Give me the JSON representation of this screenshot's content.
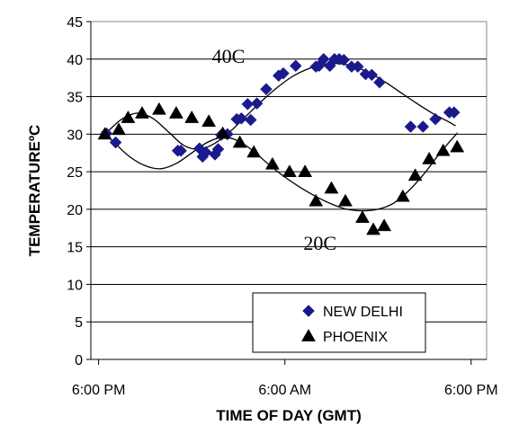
{
  "chart_data": {
    "type": "scatter",
    "title": "",
    "xlabel": "TIME OF DAY (GMT)",
    "ylabel": "TEMPERATUREºC",
    "xlim": [
      -0.5,
      25
    ],
    "ylim": [
      0,
      45
    ],
    "yticks": [
      0,
      5,
      10,
      15,
      20,
      25,
      30,
      35,
      40,
      45
    ],
    "xticks": [
      {
        "x": 0,
        "label": "6:00 PM"
      },
      {
        "x": 12,
        "label": "6:00 AM"
      },
      {
        "x": 24,
        "label": "6:00 PM"
      }
    ],
    "grid": "horizontal",
    "legend_position": "bottom-right",
    "annotations": [
      {
        "text": "40C",
        "x": 7.3,
        "y": 39.5
      },
      {
        "text": "20C",
        "x": 13.2,
        "y": 14.6
      }
    ],
    "series": [
      {
        "name": "NEW DELHI",
        "marker": "diamond",
        "color": "#1a1a8c",
        "points": [
          [
            0.5,
            30.1
          ],
          [
            1.1,
            28.9
          ],
          [
            5.1,
            27.8
          ],
          [
            5.3,
            27.8
          ],
          [
            6.5,
            28.1
          ],
          [
            6.7,
            27.0
          ],
          [
            6.9,
            27.6
          ],
          [
            7.5,
            27.3
          ],
          [
            7.7,
            28.0
          ],
          [
            7.9,
            29.9
          ],
          [
            8.3,
            30.0
          ],
          [
            8.9,
            32.0
          ],
          [
            9.2,
            32.1
          ],
          [
            9.6,
            34.0
          ],
          [
            9.8,
            31.9
          ],
          [
            10.2,
            34.1
          ],
          [
            10.8,
            36.0
          ],
          [
            11.6,
            37.8
          ],
          [
            11.9,
            38.1
          ],
          [
            12.7,
            39.1
          ],
          [
            14.0,
            39.0
          ],
          [
            14.2,
            39.1
          ],
          [
            14.5,
            40.0
          ],
          [
            14.9,
            39.1
          ],
          [
            15.2,
            40.0
          ],
          [
            15.5,
            40.0
          ],
          [
            15.8,
            39.9
          ],
          [
            16.3,
            39.0
          ],
          [
            16.7,
            39.0
          ],
          [
            17.2,
            38.0
          ],
          [
            17.6,
            37.9
          ],
          [
            18.1,
            36.9
          ],
          [
            20.1,
            31.0
          ],
          [
            20.9,
            31.0
          ],
          [
            21.7,
            32.0
          ],
          [
            22.6,
            32.9
          ],
          [
            22.9,
            32.9
          ]
        ],
        "fit_curve": [
          [
            0.5,
            30.2
          ],
          [
            1.5,
            32.0
          ],
          [
            2.5,
            32.8
          ],
          [
            3.5,
            32.1
          ],
          [
            4.5,
            30.3
          ],
          [
            5.5,
            28.5
          ],
          [
            6.5,
            28.0
          ],
          [
            7.5,
            28.8
          ],
          [
            8.5,
            30.4
          ],
          [
            9.5,
            32.4
          ],
          [
            10.5,
            34.4
          ],
          [
            11.5,
            36.2
          ],
          [
            12.5,
            37.7
          ],
          [
            13.5,
            38.7
          ],
          [
            14.5,
            39.3
          ],
          [
            15.5,
            39.4
          ],
          [
            16.5,
            39.0
          ],
          [
            17.5,
            38.1
          ],
          [
            18.5,
            36.9
          ],
          [
            19.5,
            35.5
          ],
          [
            20.5,
            34.1
          ],
          [
            21.5,
            32.8
          ],
          [
            22.5,
            31.7
          ],
          [
            23.0,
            31.1
          ]
        ]
      },
      {
        "name": "PHOENIX",
        "marker": "triangle",
        "color": "#000000",
        "points": [
          [
            0.4,
            30.0
          ],
          [
            1.3,
            30.6
          ],
          [
            1.9,
            32.2
          ],
          [
            2.8,
            32.8
          ],
          [
            3.9,
            33.3
          ],
          [
            5.0,
            32.8
          ],
          [
            6.0,
            32.2
          ],
          [
            7.1,
            31.7
          ],
          [
            8.0,
            30.1
          ],
          [
            9.1,
            28.9
          ],
          [
            10.0,
            27.6
          ],
          [
            11.2,
            26.0
          ],
          [
            12.3,
            25.0
          ],
          [
            13.3,
            25.0
          ],
          [
            14.0,
            21.1
          ],
          [
            15.0,
            22.8
          ],
          [
            15.9,
            21.1
          ],
          [
            17.0,
            18.9
          ],
          [
            17.7,
            17.3
          ],
          [
            18.4,
            17.8
          ],
          [
            19.6,
            21.7
          ],
          [
            20.4,
            24.5
          ],
          [
            21.3,
            26.7
          ],
          [
            22.2,
            27.8
          ],
          [
            23.1,
            28.3
          ]
        ],
        "fit_curve": [
          [
            0.2,
            30.4
          ],
          [
            1.0,
            28.9
          ],
          [
            2.0,
            27.0
          ],
          [
            3.0,
            25.8
          ],
          [
            4.0,
            25.4
          ],
          [
            5.0,
            26.1
          ],
          [
            6.0,
            27.5
          ],
          [
            7.0,
            28.9
          ],
          [
            8.0,
            29.6
          ],
          [
            9.0,
            29.1
          ],
          [
            10.0,
            27.7
          ],
          [
            11.0,
            25.9
          ],
          [
            12.0,
            24.3
          ],
          [
            13.0,
            22.9
          ],
          [
            14.0,
            21.7
          ],
          [
            15.0,
            20.7
          ],
          [
            16.0,
            20.0
          ],
          [
            17.0,
            19.8
          ],
          [
            18.0,
            20.0
          ],
          [
            19.0,
            20.8
          ],
          [
            20.0,
            22.5
          ],
          [
            21.0,
            24.8
          ],
          [
            22.0,
            27.5
          ],
          [
            23.0,
            29.9
          ],
          [
            23.1,
            30.1
          ]
        ]
      }
    ]
  }
}
